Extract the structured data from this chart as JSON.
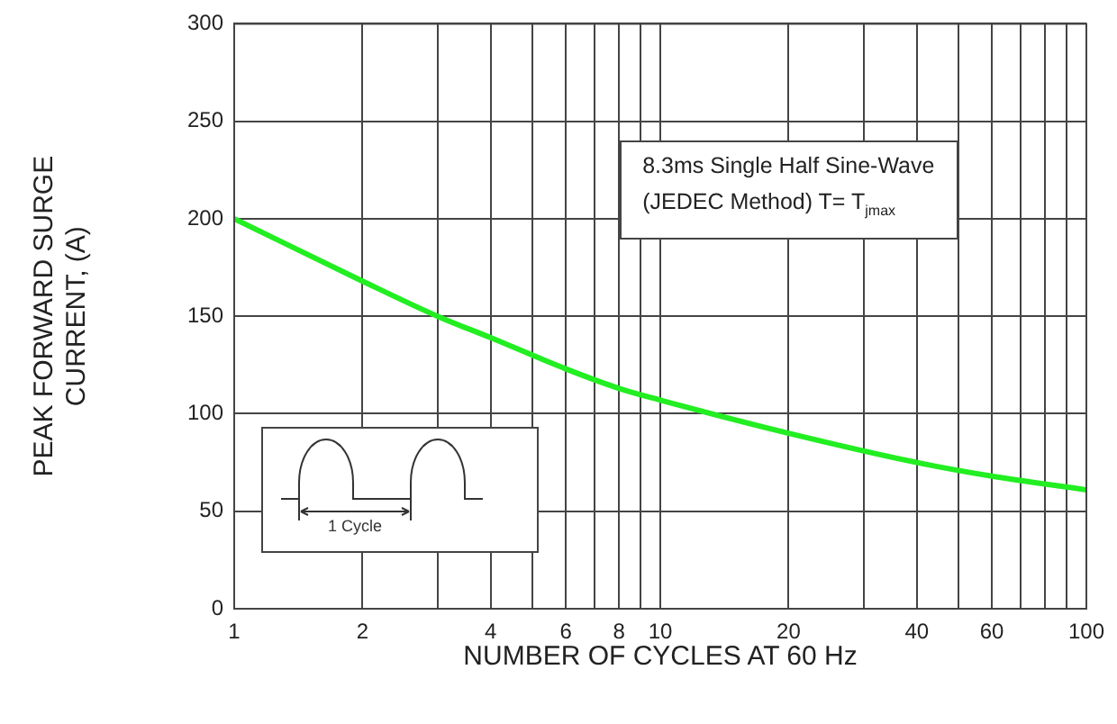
{
  "chart_data": {
    "type": "line",
    "xlabel": "NUMBER OF CYCLES AT 60 Hz",
    "ylabel": "PEAK FORWARD SURGE\nCURRENT, (A)",
    "annotations": [
      "8.3ms Single Half Sine-Wave",
      "(JEDEC Method) T= T$_{jmax}$",
      "1 Cycle"
    ],
    "x": [
      1,
      2,
      3,
      4,
      6,
      8,
      10,
      20,
      40,
      60,
      100
    ],
    "series": [
      {
        "color": "#22ee22",
        "values": [
          200,
          168,
          150,
          139,
          123,
          113,
          107,
          90,
          75,
          68,
          61
        ]
      }
    ],
    "log": "x",
    "xlim": [
      1,
      100
    ],
    "ylim": [
      0,
      300
    ],
    "xticks": [
      1,
      2,
      {
        "value": 3,
        "label": null
      },
      4,
      {
        "value": 5,
        "label": null
      },
      6,
      {
        "value": 7,
        "label": null
      },
      8,
      {
        "value": 9,
        "label": null
      },
      10,
      20,
      {
        "value": 30,
        "label": null
      },
      40,
      {
        "value": 50,
        "label": null
      },
      60,
      {
        "value": 70,
        "label": null
      },
      {
        "value": 80,
        "label": null
      },
      {
        "value": 90,
        "label": null
      },
      100
    ],
    "yticks": [
      0,
      50,
      100,
      150,
      200,
      250,
      300
    ],
    "grid": true,
    "legend": false,
    "marker": "none",
    "line_style": "solid"
  }
}
